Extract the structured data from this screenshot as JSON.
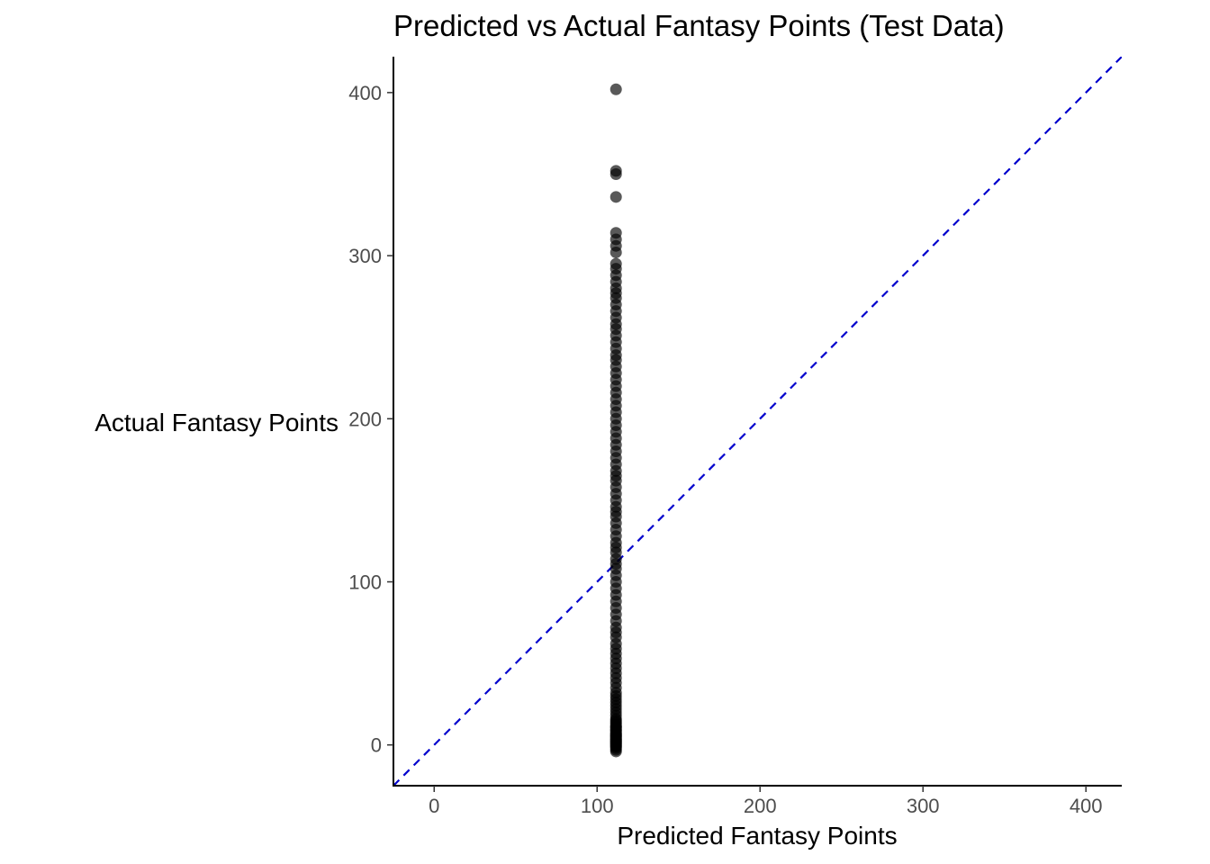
{
  "chart_data": {
    "type": "scatter",
    "title": "Predicted vs Actual Fantasy Points (Test Data)",
    "xlabel": "Predicted Fantasy Points",
    "ylabel": "Actual Fantasy Points",
    "xlim": [
      -25,
      422
    ],
    "ylim": [
      -25,
      422
    ],
    "xticks": [
      0,
      100,
      200,
      300,
      400
    ],
    "yticks": [
      0,
      100,
      200,
      300,
      400
    ],
    "grid": false,
    "legend": "none",
    "point_color": "#000000",
    "reference_line": {
      "slope": 1,
      "intercept": 0,
      "style": "dashed",
      "color": "#0000cd"
    },
    "series": [
      {
        "x": [
          111.6,
          111.6,
          111.6,
          111.6,
          111.6,
          111.6,
          111.6,
          111.6,
          111.6,
          111.6,
          111.6,
          111.6,
          111.6,
          111.6,
          111.6,
          111.6,
          111.6,
          111.6,
          111.6,
          111.6,
          111.6,
          111.6,
          111.6,
          111.6,
          111.6,
          111.6,
          111.6,
          111.6,
          111.6,
          111.6,
          111.6,
          111.6,
          111.6,
          111.6,
          111.6,
          111.6,
          111.6,
          111.6,
          111.6,
          111.6,
          111.6,
          111.6,
          111.6,
          111.6,
          111.6,
          111.6,
          111.6,
          111.6,
          111.6,
          111.6,
          111.6,
          111.6,
          111.6,
          111.6,
          111.6,
          111.6,
          111.6,
          111.6,
          111.6,
          111.6,
          111.6,
          111.6,
          111.6,
          111.6,
          111.6,
          111.6,
          111.6,
          111.6,
          111.6,
          111.6,
          111.6,
          111.6,
          111.6,
          111.6,
          111.6,
          111.6,
          111.6,
          111.6,
          111.6,
          111.6,
          111.6,
          111.6,
          111.6,
          111.6,
          111.6,
          111.6,
          111.6,
          111.6,
          111.6,
          111.6,
          111.6,
          111.6,
          111.6,
          111.6,
          111.6,
          111.6,
          111.6,
          111.6,
          111.6,
          111.6,
          111.6,
          111.6,
          111.6,
          111.6,
          111.6,
          111.6,
          111.6,
          111.6,
          111.6,
          111.6,
          111.6,
          111.6,
          111.6,
          111.6,
          111.6,
          111.6,
          111.6,
          111.6,
          111.6,
          111.6
        ],
        "y": [
          402,
          352,
          350,
          336,
          314,
          310,
          306,
          302,
          295,
          292,
          288,
          284,
          280,
          277,
          274,
          270,
          266,
          262,
          258,
          255,
          251,
          247,
          243,
          239,
          236,
          232,
          228,
          224,
          220,
          216,
          212,
          208,
          204,
          200,
          196,
          192,
          188,
          184,
          180,
          176,
          172,
          168,
          165,
          162,
          158,
          154,
          150,
          146,
          143,
          140,
          136,
          132,
          128,
          124,
          121,
          118,
          114,
          111,
          108,
          104,
          100,
          96,
          92,
          88,
          84,
          80,
          76,
          72,
          69,
          66,
          62,
          59,
          56,
          53,
          50,
          47,
          44,
          41,
          38,
          35,
          32,
          30,
          28,
          26,
          24,
          22,
          20,
          18,
          16,
          15,
          14,
          13,
          12,
          11,
          10,
          9,
          8,
          7,
          6,
          5,
          4,
          3,
          2,
          1,
          0,
          0,
          -1,
          -2,
          -3,
          -4,
          1,
          3,
          5,
          7,
          9,
          11,
          6,
          4,
          2,
          -1
        ]
      }
    ]
  }
}
